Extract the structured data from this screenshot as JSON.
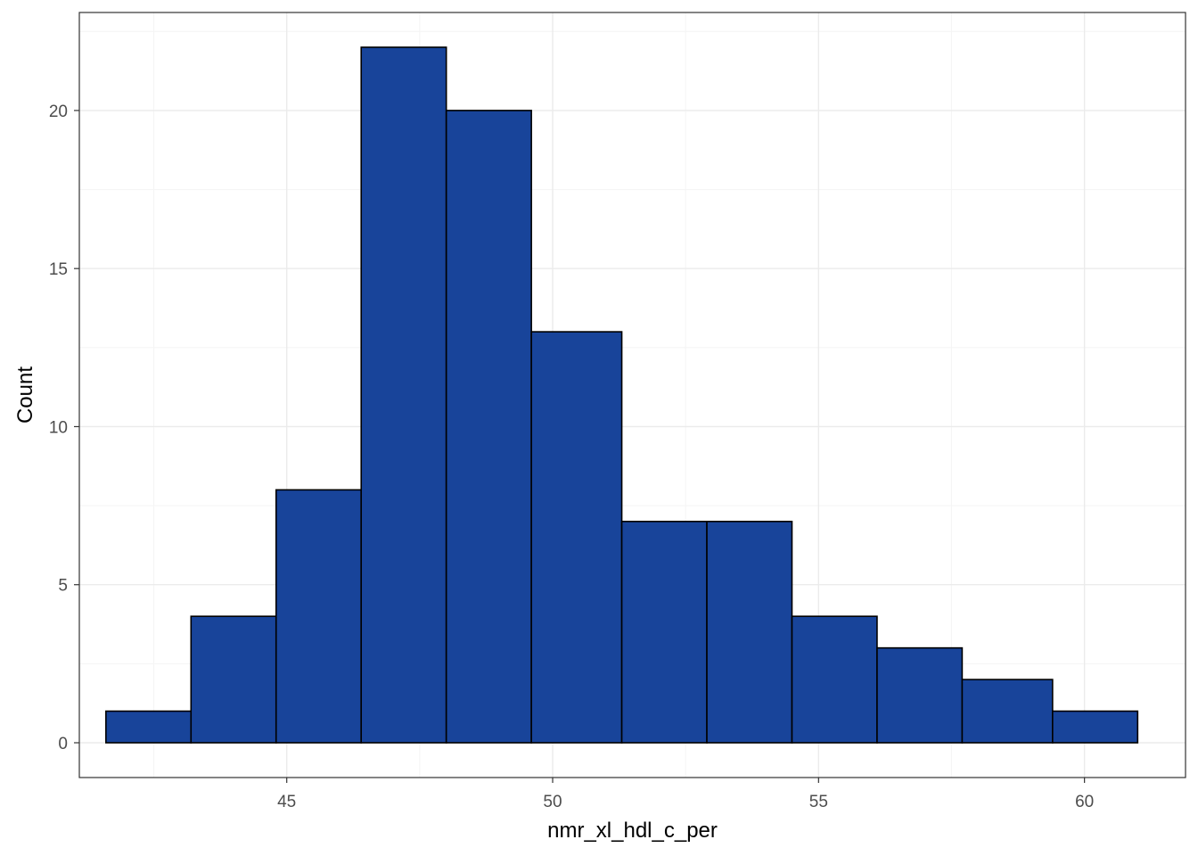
{
  "chart_data": {
    "type": "bar",
    "subtype": "histogram",
    "xlabel": "nmr_xl_hdl_c_per",
    "ylabel": "Count",
    "x_ticks": [
      45,
      50,
      55,
      60
    ],
    "y_ticks": [
      0,
      5,
      10,
      15,
      20
    ],
    "xlim": [
      41.1,
      61.9
    ],
    "ylim": [
      -1.1,
      23.1
    ],
    "grid": true,
    "bins": [
      {
        "x0": 41.6,
        "x1": 43.2,
        "count": 1
      },
      {
        "x0": 43.2,
        "x1": 44.8,
        "count": 4
      },
      {
        "x0": 44.8,
        "x1": 46.4,
        "count": 8
      },
      {
        "x0": 46.4,
        "x1": 48.0,
        "count": 22
      },
      {
        "x0": 48.0,
        "x1": 49.6,
        "count": 20
      },
      {
        "x0": 49.6,
        "x1": 51.3,
        "count": 13
      },
      {
        "x0": 51.3,
        "x1": 52.9,
        "count": 7
      },
      {
        "x0": 52.9,
        "x1": 54.5,
        "count": 7
      },
      {
        "x0": 54.5,
        "x1": 56.1,
        "count": 4
      },
      {
        "x0": 56.1,
        "x1": 57.7,
        "count": 3
      },
      {
        "x0": 57.7,
        "x1": 59.4,
        "count": 2
      },
      {
        "x0": 59.4,
        "x1": 61.0,
        "count": 1
      }
    ],
    "bar_fill": "#18449A",
    "bar_stroke": "#000000",
    "grid_major_color": "#EBEBEB",
    "grid_minor_color": "#F5F5F5",
    "panel_border_color": "#333333"
  }
}
